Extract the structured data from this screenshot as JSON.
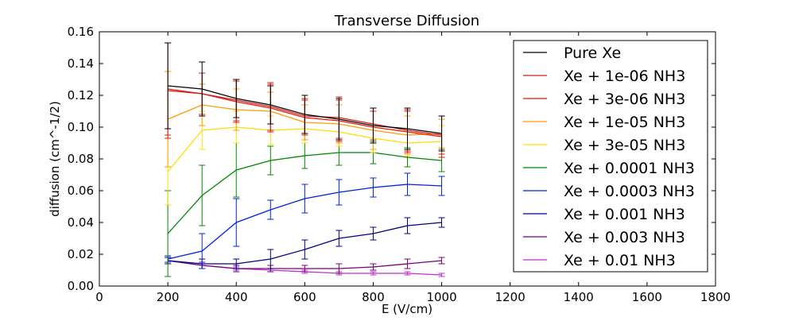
{
  "chart_data": {
    "type": "line",
    "title": "Transverse Diffusion",
    "xlabel": "E (V/cm)",
    "ylabel": "diffusion (cm^-1/2)",
    "xlim": [
      0,
      1800
    ],
    "ylim": [
      0,
      0.16
    ],
    "xticks": [
      "0",
      "200",
      "400",
      "600",
      "800",
      "1000",
      "1200",
      "1400",
      "1600",
      "1800"
    ],
    "yticks": [
      "0.00",
      "0.02",
      "0.04",
      "0.06",
      "0.08",
      "0.10",
      "0.12",
      "0.14",
      "0.16"
    ],
    "grid": false,
    "legend_position": "upper-right",
    "x": [
      200,
      300,
      400,
      500,
      600,
      700,
      800,
      900,
      1000
    ],
    "series": [
      {
        "name": "Pure Xe",
        "color": "#000000",
        "values": [
          0.126,
          0.124,
          0.118,
          0.114,
          0.108,
          0.105,
          0.101,
          0.099,
          0.096
        ],
        "errors": [
          0.027,
          0.017,
          0.012,
          0.012,
          0.012,
          0.013,
          0.011,
          0.013,
          0.011
        ]
      },
      {
        "name": "Xe + 1e-06 NH3",
        "color": "#cc2222",
        "values": [
          0.124,
          0.121,
          0.117,
          0.113,
          0.107,
          0.106,
          0.102,
          0.098,
          0.095
        ],
        "errors": [
          0.029,
          0.013,
          0.013,
          0.015,
          0.011,
          0.013,
          0.01,
          0.013,
          0.012
        ]
      },
      {
        "name": "Xe + 3e-06 NH3",
        "color": "#ee1100",
        "values": [
          0.123,
          0.121,
          0.116,
          0.112,
          0.106,
          0.104,
          0.1,
          0.097,
          0.094
        ],
        "errors": [
          0.03,
          0.013,
          0.013,
          0.015,
          0.011,
          0.013,
          0.01,
          0.013,
          0.013
        ]
      },
      {
        "name": "Xe + 1e-05 NH3",
        "color": "#ff9900",
        "values": [
          0.105,
          0.114,
          0.111,
          0.11,
          0.103,
          0.102,
          0.098,
          0.095,
          0.096
        ],
        "errors": [
          0.03,
          0.013,
          0.013,
          0.012,
          0.011,
          0.012,
          0.012,
          0.012,
          0.009
        ]
      },
      {
        "name": "Xe + 3e-05 NH3",
        "color": "#ffdd00",
        "values": [
          0.072,
          0.098,
          0.1,
          0.098,
          0.099,
          0.097,
          0.093,
          0.09,
          0.091
        ],
        "errors": [
          0.021,
          0.012,
          0.01,
          0.009,
          0.009,
          0.009,
          0.009,
          0.008,
          0.01
        ]
      },
      {
        "name": "Xe + 0.0001 NH3",
        "color": "#008800",
        "values": [
          0.033,
          0.057,
          0.073,
          0.079,
          0.082,
          0.084,
          0.084,
          0.081,
          0.079
        ],
        "errors": [
          0.027,
          0.019,
          0.017,
          0.009,
          0.008,
          0.008,
          0.007,
          0.006,
          0.007
        ]
      },
      {
        "name": "Xe + 0.0003 NH3",
        "color": "#0022dd",
        "values": [
          0.017,
          0.022,
          0.04,
          0.048,
          0.055,
          0.059,
          0.062,
          0.064,
          0.063
        ],
        "errors": [
          0.002,
          0.011,
          0.015,
          0.006,
          0.009,
          0.008,
          0.006,
          0.007,
          0.006
        ]
      },
      {
        "name": "Xe + 0.001 NH3",
        "color": "#000088",
        "values": [
          0.016,
          0.014,
          0.014,
          0.017,
          0.023,
          0.03,
          0.033,
          0.038,
          0.04
        ],
        "errors": [
          0.002,
          0.003,
          0.003,
          0.006,
          0.006,
          0.005,
          0.004,
          0.005,
          0.003
        ]
      },
      {
        "name": "Xe + 0.003 NH3",
        "color": "#7a0077",
        "values": [
          0.016,
          0.013,
          0.011,
          0.011,
          0.011,
          0.011,
          0.012,
          0.014,
          0.016
        ],
        "errors": [
          0.002,
          0.002,
          0.002,
          0.002,
          0.002,
          0.003,
          0.002,
          0.003,
          0.002
        ]
      },
      {
        "name": "Xe + 0.01 NH3",
        "color": "#bb33cc",
        "values": [
          0.016,
          0.013,
          0.011,
          0.01,
          0.009,
          0.008,
          0.008,
          0.008,
          0.007
        ],
        "errors": [
          0.002,
          0.002,
          0.001,
          0.001,
          0.001,
          0.001,
          0.001,
          0.001,
          0.001
        ]
      }
    ]
  }
}
